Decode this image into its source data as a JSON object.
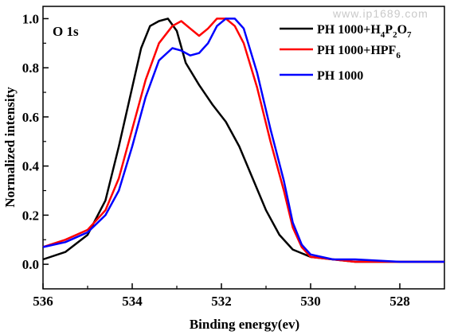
{
  "watermark": "www.ip1689.com",
  "chart_data": {
    "type": "line",
    "title": "",
    "panel_label": "O 1s",
    "xlabel": "Binding energy(ev)",
    "ylabel": "Normalized intensity",
    "xlim": [
      536,
      527
    ],
    "ylim": [
      -0.1,
      1.05
    ],
    "x_reversed": true,
    "xticks": [
      536,
      534,
      532,
      530,
      528
    ],
    "yticks": [
      0.0,
      0.2,
      0.4,
      0.6,
      0.8,
      1.0
    ],
    "ytick_labels": [
      "0.0",
      "0.2",
      "0.4",
      "0.6",
      "0.8",
      "1.0"
    ],
    "grid": false,
    "legend_position": "top-right",
    "legend_labels": [
      {
        "parts": [
          "PH 1000+H",
          "4",
          "P",
          "2",
          "O",
          "7"
        ]
      },
      {
        "parts": [
          "PH 1000+HPF",
          "6"
        ]
      },
      {
        "parts": [
          "PH 1000"
        ]
      }
    ],
    "series": [
      {
        "color": "#000000",
        "x": [
          536.0,
          535.5,
          535.0,
          534.6,
          534.3,
          534.0,
          533.8,
          533.6,
          533.4,
          533.2,
          533.0,
          532.8,
          532.5,
          532.2,
          531.9,
          531.6,
          531.3,
          531.0,
          530.7,
          530.4,
          530.0,
          529.5,
          529.0,
          528.0,
          527.0
        ],
        "y": [
          0.02,
          0.05,
          0.12,
          0.26,
          0.48,
          0.72,
          0.88,
          0.97,
          0.99,
          1.0,
          0.95,
          0.82,
          0.73,
          0.65,
          0.58,
          0.48,
          0.35,
          0.22,
          0.12,
          0.06,
          0.03,
          0.02,
          0.01,
          0.01,
          0.01
        ]
      },
      {
        "color": "#ff0000",
        "x": [
          536.0,
          535.5,
          535.0,
          534.6,
          534.3,
          534.0,
          533.7,
          533.4,
          533.1,
          532.9,
          532.7,
          532.5,
          532.3,
          532.1,
          531.9,
          531.7,
          531.5,
          531.2,
          530.9,
          530.6,
          530.4,
          530.2,
          530.0,
          529.5,
          529.0,
          528.0,
          527.0
        ],
        "y": [
          0.07,
          0.1,
          0.14,
          0.22,
          0.35,
          0.55,
          0.75,
          0.9,
          0.97,
          0.99,
          0.96,
          0.93,
          0.96,
          1.0,
          1.0,
          0.97,
          0.9,
          0.72,
          0.5,
          0.3,
          0.15,
          0.07,
          0.03,
          0.02,
          0.01,
          0.01,
          0.01
        ]
      },
      {
        "color": "#0000ff",
        "x": [
          536.0,
          535.5,
          535.0,
          534.6,
          534.3,
          534.0,
          533.7,
          533.4,
          533.1,
          532.9,
          532.7,
          532.5,
          532.3,
          532.1,
          531.9,
          531.7,
          531.5,
          531.2,
          530.9,
          530.6,
          530.4,
          530.2,
          530.0,
          529.5,
          529.0,
          528.0,
          527.0
        ],
        "y": [
          0.07,
          0.09,
          0.13,
          0.2,
          0.3,
          0.48,
          0.68,
          0.83,
          0.88,
          0.87,
          0.85,
          0.86,
          0.9,
          0.97,
          1.0,
          1.0,
          0.96,
          0.78,
          0.55,
          0.34,
          0.17,
          0.08,
          0.04,
          0.02,
          0.02,
          0.01,
          0.01
        ]
      }
    ]
  }
}
